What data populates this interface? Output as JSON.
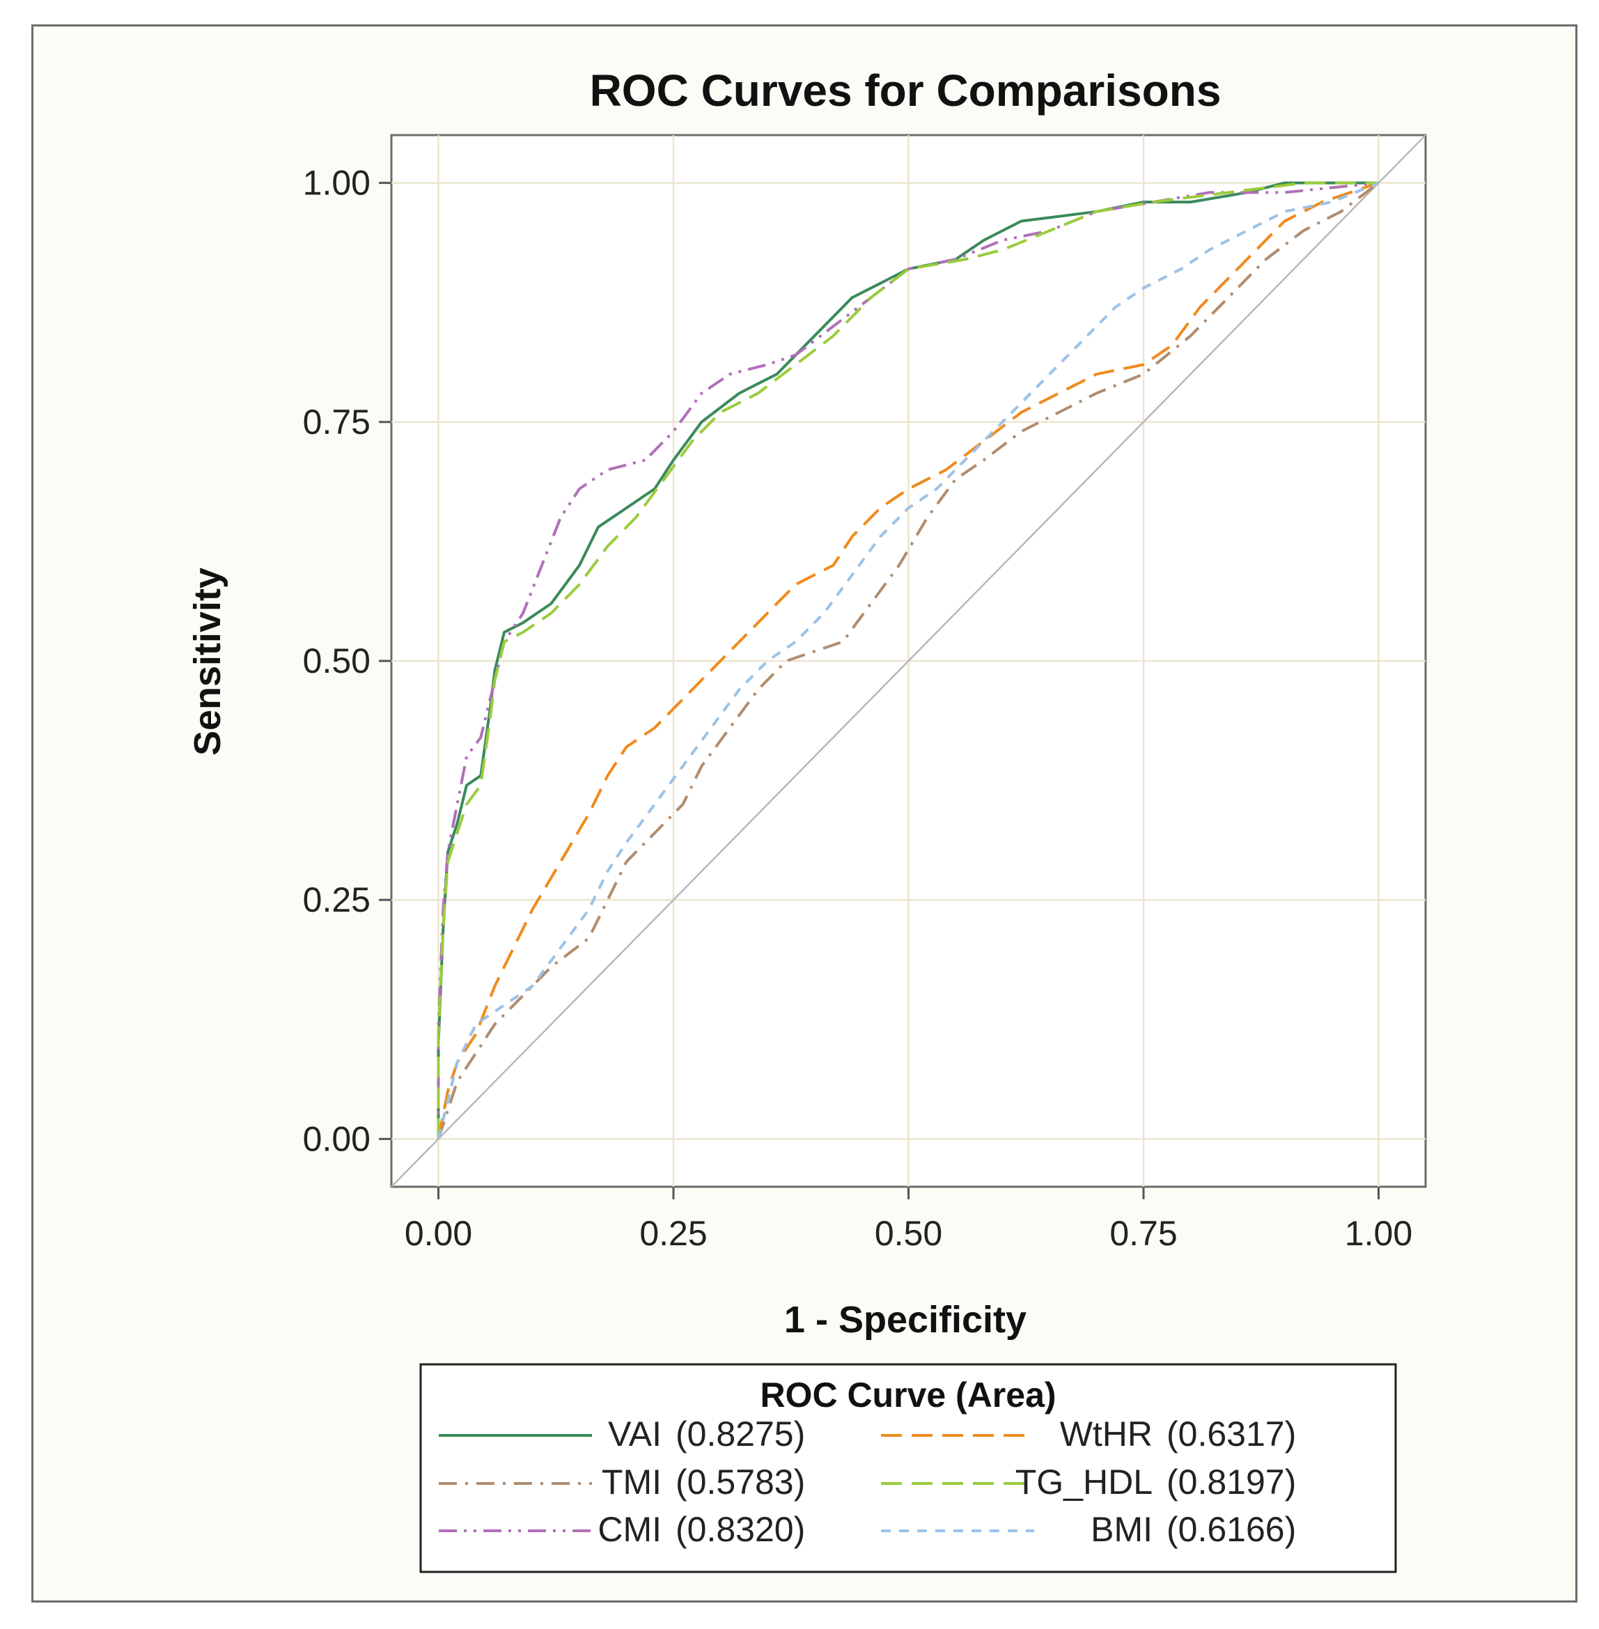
{
  "chart_data": {
    "type": "line",
    "title": "ROC Curves for Comparisons",
    "xlabel": "1 - Specificity",
    "ylabel": "Sensitivity",
    "xlim": [
      -0.05,
      1.05
    ],
    "ylim": [
      -0.05,
      1.05
    ],
    "x_ticks": [
      "0.00",
      "0.25",
      "0.50",
      "0.75",
      "1.00"
    ],
    "y_ticks": [
      "0.00",
      "0.25",
      "0.50",
      "0.75",
      "1.00"
    ],
    "grid": true,
    "reference_line": "diagonal",
    "legend": {
      "title": "ROC Curve (Area)",
      "placement": "bottom"
    },
    "series": [
      {
        "name": "VAI",
        "area": "(0.8275)",
        "color": "#3a8a5a",
        "dash": "solid",
        "points": [
          [
            0,
            0
          ],
          [
            0,
            0.1
          ],
          [
            0.005,
            0.22
          ],
          [
            0.01,
            0.3
          ],
          [
            0.02,
            0.33
          ],
          [
            0.03,
            0.37
          ],
          [
            0.045,
            0.38
          ],
          [
            0.055,
            0.45
          ],
          [
            0.06,
            0.49
          ],
          [
            0.07,
            0.53
          ],
          [
            0.09,
            0.54
          ],
          [
            0.12,
            0.56
          ],
          [
            0.15,
            0.6
          ],
          [
            0.17,
            0.64
          ],
          [
            0.2,
            0.66
          ],
          [
            0.23,
            0.68
          ],
          [
            0.25,
            0.71
          ],
          [
            0.28,
            0.75
          ],
          [
            0.32,
            0.78
          ],
          [
            0.36,
            0.8
          ],
          [
            0.4,
            0.84
          ],
          [
            0.44,
            0.88
          ],
          [
            0.48,
            0.9
          ],
          [
            0.5,
            0.91
          ],
          [
            0.55,
            0.92
          ],
          [
            0.58,
            0.94
          ],
          [
            0.62,
            0.96
          ],
          [
            0.7,
            0.97
          ],
          [
            0.75,
            0.98
          ],
          [
            0.8,
            0.98
          ],
          [
            0.86,
            0.99
          ],
          [
            0.9,
            1.0
          ],
          [
            1.0,
            1.0
          ]
        ]
      },
      {
        "name": "TMI",
        "area": "(0.5783)",
        "color": "#b08c6e",
        "dash": "dashdot",
        "points": [
          [
            0,
            0
          ],
          [
            0.01,
            0.03
          ],
          [
            0.02,
            0.06
          ],
          [
            0.04,
            0.09
          ],
          [
            0.06,
            0.12
          ],
          [
            0.09,
            0.15
          ],
          [
            0.12,
            0.18
          ],
          [
            0.16,
            0.21
          ],
          [
            0.18,
            0.25
          ],
          [
            0.2,
            0.29
          ],
          [
            0.23,
            0.32
          ],
          [
            0.26,
            0.35
          ],
          [
            0.28,
            0.39
          ],
          [
            0.31,
            0.43
          ],
          [
            0.34,
            0.47
          ],
          [
            0.37,
            0.5
          ],
          [
            0.4,
            0.51
          ],
          [
            0.43,
            0.52
          ],
          [
            0.46,
            0.56
          ],
          [
            0.49,
            0.6
          ],
          [
            0.52,
            0.65
          ],
          [
            0.55,
            0.69
          ],
          [
            0.58,
            0.71
          ],
          [
            0.62,
            0.74
          ],
          [
            0.66,
            0.76
          ],
          [
            0.7,
            0.78
          ],
          [
            0.75,
            0.8
          ],
          [
            0.8,
            0.84
          ],
          [
            0.84,
            0.88
          ],
          [
            0.88,
            0.92
          ],
          [
            0.92,
            0.95
          ],
          [
            0.96,
            0.97
          ],
          [
            1.0,
            1.0
          ]
        ]
      },
      {
        "name": "CMI",
        "area": "(0.8320)",
        "color": "#b070b8",
        "dash": "dashdotdot",
        "points": [
          [
            0,
            0
          ],
          [
            0,
            0.12
          ],
          [
            0.005,
            0.24
          ],
          [
            0.01,
            0.3
          ],
          [
            0.02,
            0.35
          ],
          [
            0.03,
            0.4
          ],
          [
            0.045,
            0.42
          ],
          [
            0.06,
            0.48
          ],
          [
            0.07,
            0.52
          ],
          [
            0.09,
            0.55
          ],
          [
            0.11,
            0.6
          ],
          [
            0.13,
            0.65
          ],
          [
            0.15,
            0.68
          ],
          [
            0.18,
            0.7
          ],
          [
            0.22,
            0.71
          ],
          [
            0.25,
            0.74
          ],
          [
            0.28,
            0.78
          ],
          [
            0.31,
            0.8
          ],
          [
            0.35,
            0.81
          ],
          [
            0.38,
            0.82
          ],
          [
            0.42,
            0.85
          ],
          [
            0.46,
            0.88
          ],
          [
            0.5,
            0.91
          ],
          [
            0.55,
            0.92
          ],
          [
            0.6,
            0.94
          ],
          [
            0.65,
            0.95
          ],
          [
            0.7,
            0.97
          ],
          [
            0.76,
            0.98
          ],
          [
            0.82,
            0.99
          ],
          [
            0.9,
            0.99
          ],
          [
            1.0,
            1.0
          ]
        ]
      },
      {
        "name": "WtHR",
        "area": "(0.6317)",
        "color": "#f08a1c",
        "dash": "longdash",
        "points": [
          [
            0,
            0
          ],
          [
            0.01,
            0.05
          ],
          [
            0.02,
            0.08
          ],
          [
            0.04,
            0.11
          ],
          [
            0.06,
            0.16
          ],
          [
            0.08,
            0.2
          ],
          [
            0.1,
            0.24
          ],
          [
            0.13,
            0.29
          ],
          [
            0.16,
            0.34
          ],
          [
            0.18,
            0.38
          ],
          [
            0.2,
            0.41
          ],
          [
            0.23,
            0.43
          ],
          [
            0.26,
            0.46
          ],
          [
            0.29,
            0.49
          ],
          [
            0.32,
            0.52
          ],
          [
            0.35,
            0.55
          ],
          [
            0.38,
            0.58
          ],
          [
            0.42,
            0.6
          ],
          [
            0.44,
            0.63
          ],
          [
            0.47,
            0.66
          ],
          [
            0.5,
            0.68
          ],
          [
            0.54,
            0.7
          ],
          [
            0.58,
            0.73
          ],
          [
            0.62,
            0.76
          ],
          [
            0.66,
            0.78
          ],
          [
            0.7,
            0.8
          ],
          [
            0.75,
            0.81
          ],
          [
            0.78,
            0.83
          ],
          [
            0.81,
            0.87
          ],
          [
            0.84,
            0.9
          ],
          [
            0.87,
            0.93
          ],
          [
            0.9,
            0.96
          ],
          [
            0.94,
            0.98
          ],
          [
            1.0,
            1.0
          ]
        ]
      },
      {
        "name": "TG_HDL",
        "area": "(0.8197)",
        "color": "#9acc3c",
        "dash": "longdash",
        "points": [
          [
            0,
            0
          ],
          [
            0,
            0.11
          ],
          [
            0.005,
            0.22
          ],
          [
            0.01,
            0.29
          ],
          [
            0.02,
            0.32
          ],
          [
            0.03,
            0.35
          ],
          [
            0.045,
            0.37
          ],
          [
            0.055,
            0.44
          ],
          [
            0.06,
            0.48
          ],
          [
            0.07,
            0.52
          ],
          [
            0.09,
            0.53
          ],
          [
            0.12,
            0.55
          ],
          [
            0.15,
            0.58
          ],
          [
            0.18,
            0.62
          ],
          [
            0.21,
            0.65
          ],
          [
            0.24,
            0.69
          ],
          [
            0.27,
            0.73
          ],
          [
            0.3,
            0.76
          ],
          [
            0.34,
            0.78
          ],
          [
            0.38,
            0.81
          ],
          [
            0.42,
            0.84
          ],
          [
            0.46,
            0.88
          ],
          [
            0.5,
            0.91
          ],
          [
            0.56,
            0.92
          ],
          [
            0.6,
            0.93
          ],
          [
            0.65,
            0.95
          ],
          [
            0.7,
            0.97
          ],
          [
            0.76,
            0.98
          ],
          [
            0.84,
            0.99
          ],
          [
            0.92,
            1.0
          ],
          [
            1.0,
            1.0
          ]
        ]
      },
      {
        "name": "BMI",
        "area": "(0.6166)",
        "color": "#9cc2e6",
        "dash": "shortdash",
        "points": [
          [
            0,
            0
          ],
          [
            0.01,
            0.04
          ],
          [
            0.02,
            0.08
          ],
          [
            0.04,
            0.12
          ],
          [
            0.07,
            0.14
          ],
          [
            0.1,
            0.16
          ],
          [
            0.13,
            0.2
          ],
          [
            0.16,
            0.24
          ],
          [
            0.18,
            0.28
          ],
          [
            0.2,
            0.31
          ],
          [
            0.23,
            0.35
          ],
          [
            0.26,
            0.39
          ],
          [
            0.29,
            0.43
          ],
          [
            0.32,
            0.47
          ],
          [
            0.35,
            0.5
          ],
          [
            0.38,
            0.52
          ],
          [
            0.41,
            0.55
          ],
          [
            0.44,
            0.59
          ],
          [
            0.47,
            0.63
          ],
          [
            0.5,
            0.66
          ],
          [
            0.53,
            0.68
          ],
          [
            0.56,
            0.71
          ],
          [
            0.6,
            0.75
          ],
          [
            0.63,
            0.78
          ],
          [
            0.66,
            0.81
          ],
          [
            0.69,
            0.84
          ],
          [
            0.72,
            0.87
          ],
          [
            0.75,
            0.89
          ],
          [
            0.79,
            0.91
          ],
          [
            0.82,
            0.93
          ],
          [
            0.86,
            0.95
          ],
          [
            0.9,
            0.97
          ],
          [
            0.95,
            0.98
          ],
          [
            1.0,
            1.0
          ]
        ]
      }
    ]
  }
}
